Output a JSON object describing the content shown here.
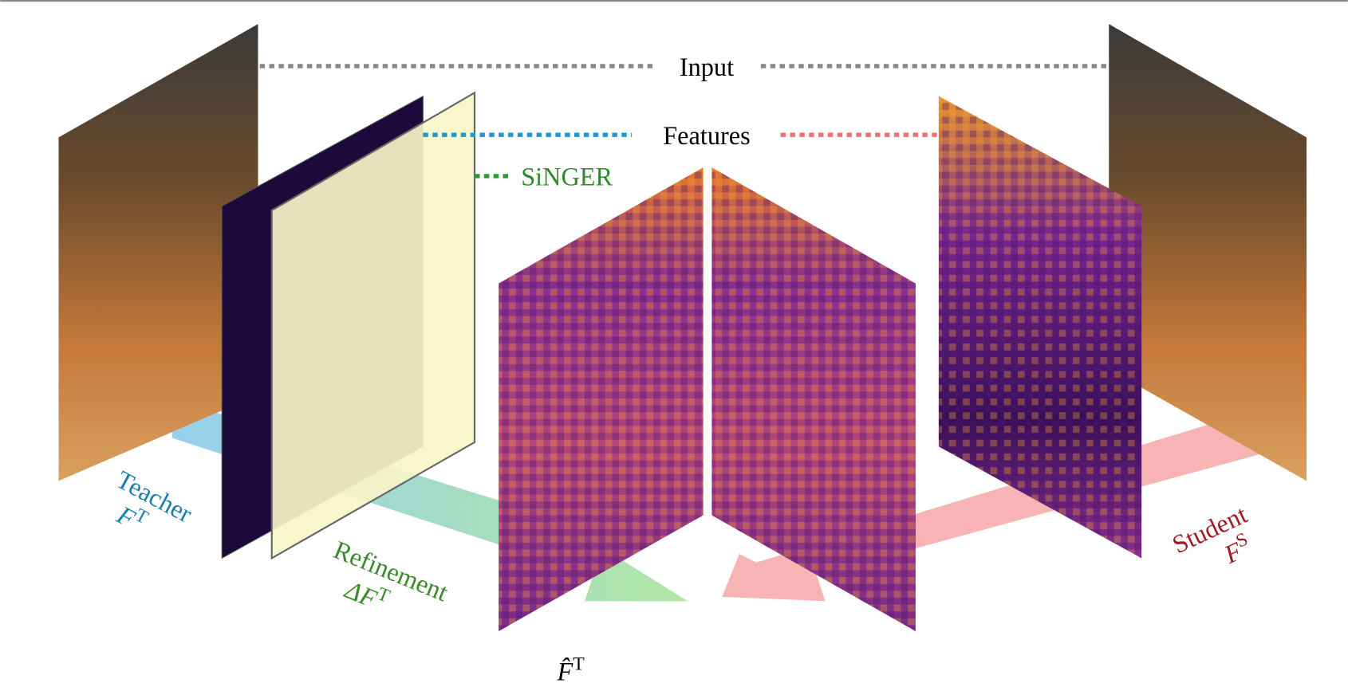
{
  "input": "Input",
  "features": "Features",
  "singer": "SiNGER",
  "teacher": {
    "name": "Teacher",
    "symbol": "F",
    "superscript": "T"
  },
  "refinement": {
    "name": "Refinement",
    "symbol": "ΔF",
    "superscript": "T"
  },
  "student": {
    "name": "Student",
    "symbol": "F",
    "superscript": "S"
  },
  "refined_teacher": {
    "symbol": "F̂",
    "superscript": "T"
  }
}
